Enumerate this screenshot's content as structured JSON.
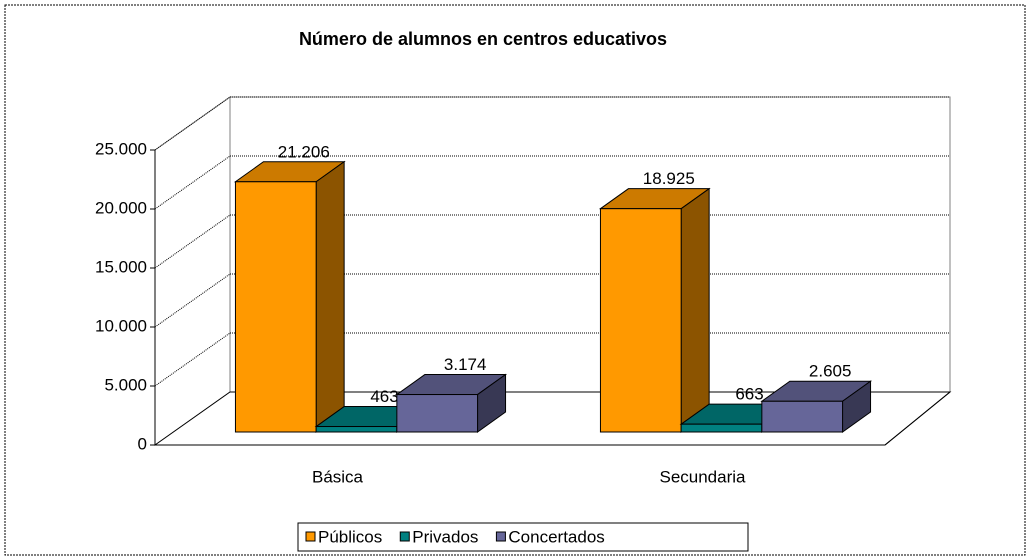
{
  "chart_data": {
    "type": "bar3d",
    "title": "Número de alumnos en centros educativos",
    "categories": [
      "Básica",
      "Secundaria"
    ],
    "series": [
      {
        "name": "Públicos",
        "color": "#ff9900",
        "values": [
          21206,
          18925
        ],
        "value_labels": [
          "21.206",
          "18.925"
        ]
      },
      {
        "name": "Privados",
        "color": "#008080",
        "values": [
          463,
          663
        ]
      },
      {
        "name": "Concertados",
        "color": "#666699",
        "values": [
          3174,
          2605
        ],
        "value_labels": [
          "3.174",
          "2.605"
        ]
      }
    ],
    "ylim": [
      0,
      25000
    ],
    "yticks": [
      0,
      {
        "value": 5000,
        "label": "5.000"
      },
      {
        "value": 10000,
        "label": "10.000"
      },
      {
        "value": 15000,
        "label": "15.000"
      },
      {
        "value": 20000,
        "label": "20.000"
      },
      {
        "value": 25000,
        "label": "25.000"
      }
    ],
    "grid": true,
    "legend": "bottom"
  }
}
